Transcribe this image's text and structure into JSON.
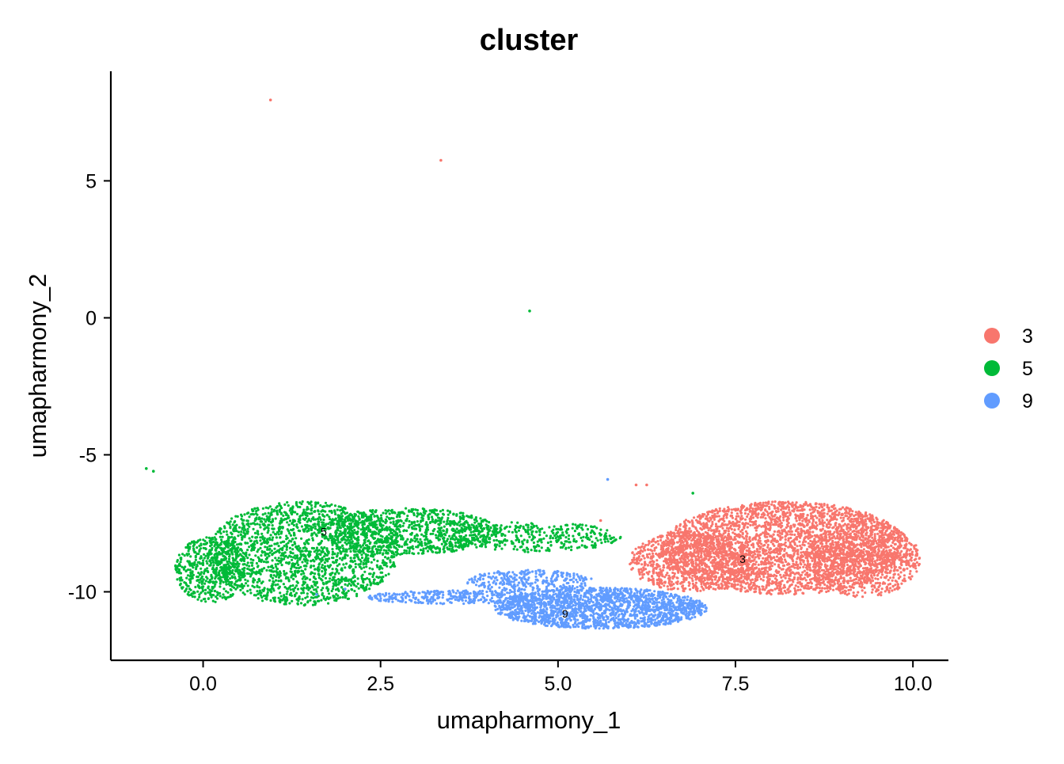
{
  "chart_data": {
    "type": "scatter",
    "title": "cluster",
    "xlabel": "umapharmony_1",
    "ylabel": "umapharmony_2",
    "xlim": [
      -1.3,
      10.5
    ],
    "ylim": [
      -12.5,
      9.0
    ],
    "x_ticks": [
      0.0,
      2.5,
      5.0,
      7.5,
      10.0
    ],
    "x_tick_labels": [
      "0.0",
      "2.5",
      "5.0",
      "7.5",
      "10.0"
    ],
    "y_ticks": [
      5,
      0,
      -5,
      -10
    ],
    "y_tick_labels": [
      "5",
      "0",
      "-5",
      "-10"
    ],
    "grid": false,
    "legend_position": "right",
    "series": [
      {
        "name": "3",
        "color": "#F8766D",
        "label_position": [
          7.6,
          -8.8
        ],
        "clusters": [
          {
            "cx": 8.2,
            "cy": -8.4,
            "rx": 1.75,
            "ry": 1.7,
            "n": 3200
          },
          {
            "cx": 6.9,
            "cy": -8.9,
            "rx": 0.9,
            "ry": 1.1,
            "n": 900
          },
          {
            "cx": 9.3,
            "cy": -8.8,
            "rx": 0.8,
            "ry": 1.4,
            "n": 700
          }
        ],
        "outliers": [
          [
            0.95,
            7.95
          ],
          [
            3.35,
            5.75
          ],
          [
            6.25,
            -6.1
          ],
          [
            6.1,
            -6.1
          ],
          [
            5.6,
            -7.4
          ]
        ]
      },
      {
        "name": "5",
        "color": "#00BA38",
        "label_position": [
          1.7,
          -7.8
        ],
        "clusters": [
          {
            "cx": 1.4,
            "cy": -8.6,
            "rx": 1.35,
            "ry": 1.9,
            "n": 1900
          },
          {
            "cx": 2.9,
            "cy": -7.8,
            "rx": 1.25,
            "ry": 0.85,
            "n": 900
          },
          {
            "cx": 4.6,
            "cy": -8.0,
            "rx": 1.3,
            "ry": 0.55,
            "n": 400
          },
          {
            "cx": 0.1,
            "cy": -9.2,
            "rx": 0.5,
            "ry": 1.2,
            "n": 500
          }
        ],
        "outliers": [
          [
            4.6,
            0.25
          ],
          [
            -0.8,
            -5.5
          ],
          [
            -0.7,
            -5.6
          ],
          [
            6.9,
            -6.4
          ]
        ]
      },
      {
        "name": "9",
        "color": "#619CFF",
        "label_position": [
          5.1,
          -10.8
        ],
        "clusters": [
          {
            "cx": 5.6,
            "cy": -10.6,
            "rx": 1.5,
            "ry": 0.75,
            "n": 1900
          },
          {
            "cx": 3.6,
            "cy": -10.2,
            "rx": 1.3,
            "ry": 0.25,
            "n": 350
          },
          {
            "cx": 4.6,
            "cy": -9.6,
            "rx": 0.9,
            "ry": 0.4,
            "n": 300
          }
        ],
        "outliers": [
          [
            5.7,
            -5.9
          ],
          [
            2.0,
            -9.9
          ],
          [
            1.6,
            -10.1
          ]
        ]
      }
    ]
  }
}
